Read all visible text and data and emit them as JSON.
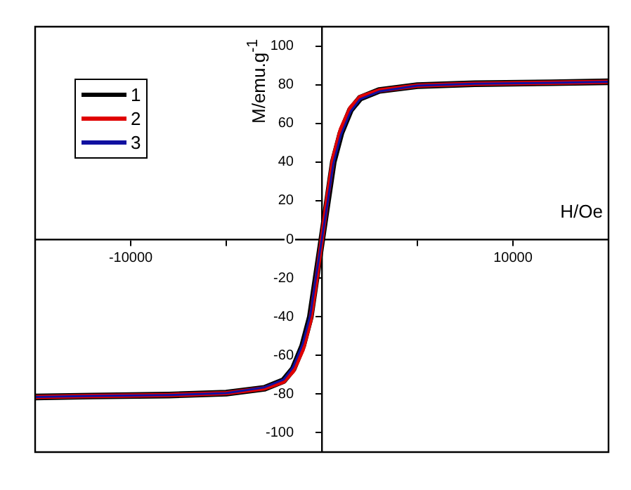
{
  "chart_data": {
    "type": "line",
    "xlabel": "H/Oe",
    "ylabel": "M/emu.g$^{-1}$",
    "legend": "top left",
    "marker": "none",
    "line_style": "solid",
    "xlim": [
      -15000,
      15000
    ],
    "ylim": [
      -110,
      110
    ],
    "xticks": [
      {
        "value": -10000,
        "label": "-10000"
      },
      {
        "value": -5000,
        "label": null
      },
      {
        "value": 0,
        "label": null
      },
      {
        "value": 5000,
        "label": null
      },
      {
        "value": 10000,
        "label": "10000"
      }
    ],
    "yticks": [
      -100,
      -80,
      -60,
      -40,
      -20,
      0,
      20,
      40,
      60,
      80,
      100
    ],
    "x": [
      -15000,
      -12000,
      -8000,
      -5000,
      -3000,
      -2000,
      -1500,
      -1000,
      -600,
      -300,
      0,
      300,
      600,
      1000,
      1500,
      2000,
      3000,
      5000,
      8000,
      12000,
      15000
    ],
    "series": [
      {
        "name": "1",
        "color": "#000000",
        "values": [
          -81.5,
          -81,
          -80.5,
          -79.5,
          -77,
          -73,
          -67,
          -55,
          -40,
          -20,
          0,
          20,
          40,
          55,
          67,
          73,
          77,
          79.5,
          80.5,
          81,
          81.5
        ]
      },
      {
        "name": "2",
        "color": "#e00000",
        "values": [
          -81.5,
          -81,
          -80.5,
          -79.5,
          -77,
          -73.5,
          -68,
          -57,
          -42,
          -22,
          0,
          22,
          42,
          57,
          68,
          73.5,
          77,
          79.5,
          80.5,
          81,
          81.5
        ]
      },
      {
        "name": "3",
        "color": "#1010a0",
        "values": [
          -81.5,
          -81,
          -80.5,
          -79.5,
          -76.5,
          -72.5,
          -66,
          -54,
          -39,
          -19,
          0,
          19,
          39,
          54,
          66,
          72.5,
          76.5,
          79.5,
          80.5,
          81,
          81.5
        ]
      }
    ]
  }
}
